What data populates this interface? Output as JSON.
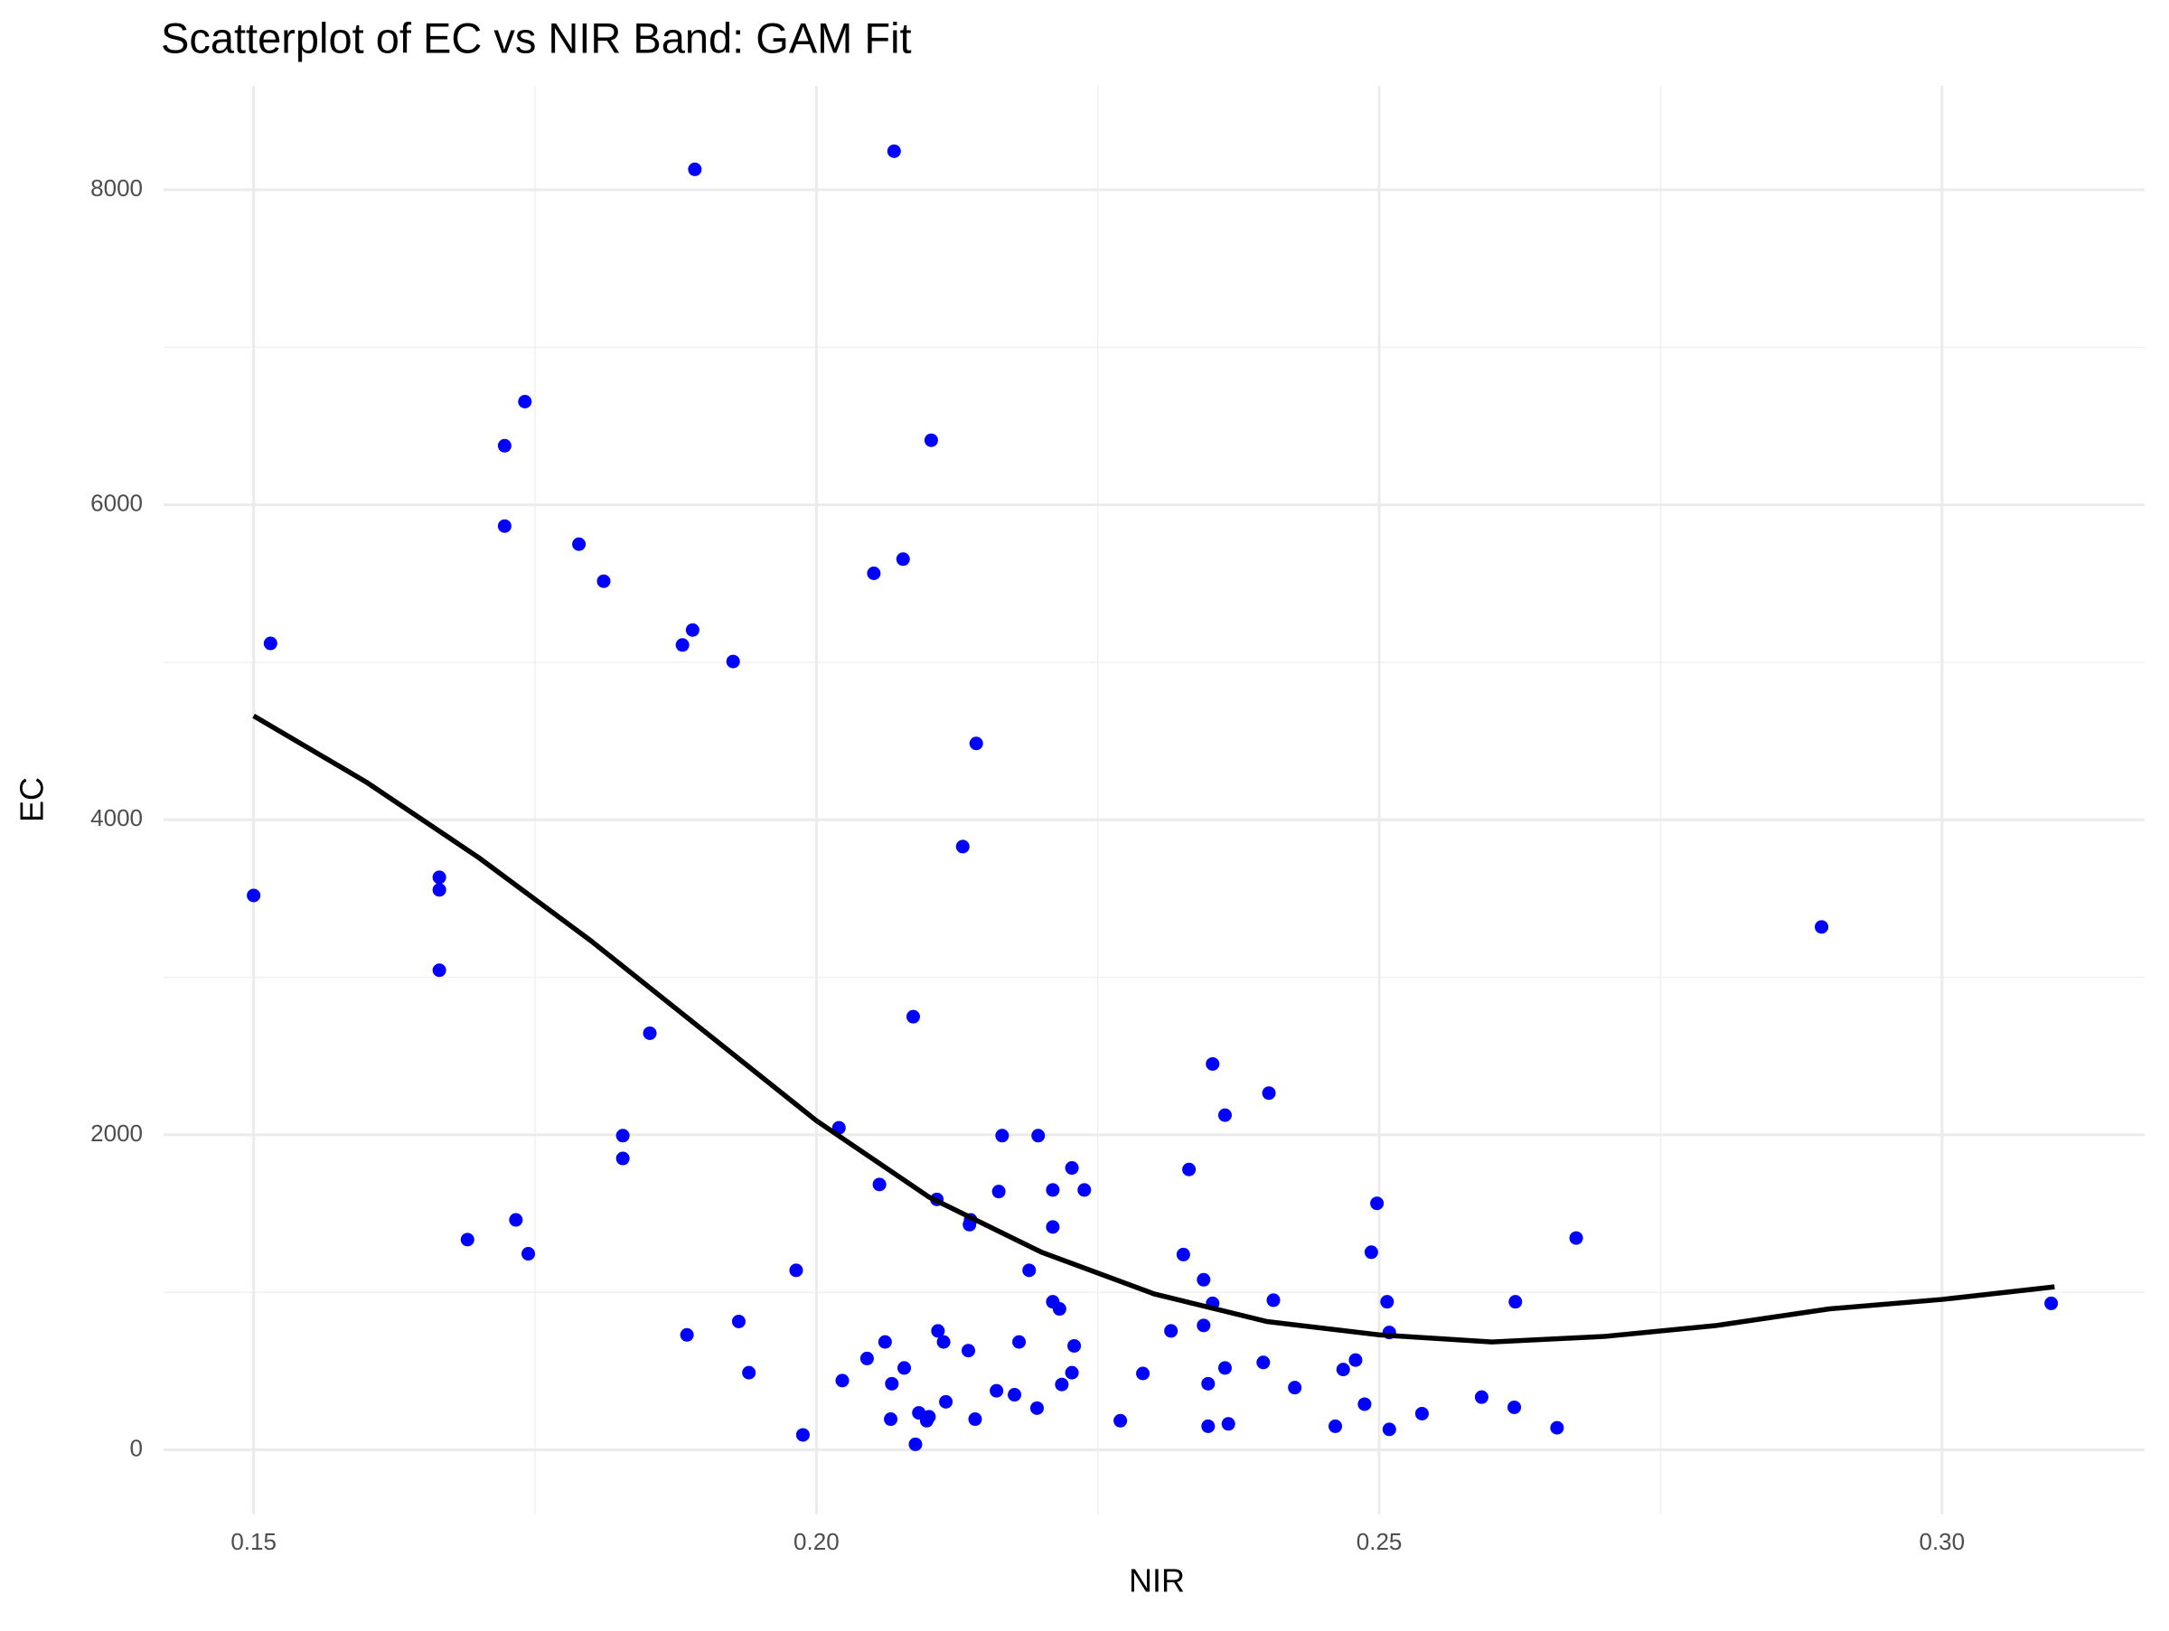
{
  "chart_data": {
    "type": "scatter",
    "title": "Scatterplot of EC vs NIR Band: GAM Fit",
    "x_label": "NIR",
    "y_label": "EC",
    "xlim": [
      0.142,
      0.318
    ],
    "ylim": [
      -410,
      8660
    ],
    "xticks": [
      {
        "value": 0.15,
        "label": "0.15"
      },
      {
        "value": 0.2,
        "label": "0.20"
      },
      {
        "value": 0.25,
        "label": "0.25"
      },
      {
        "value": 0.3,
        "label": "0.30"
      }
    ],
    "yticks": [
      0,
      2000,
      4000,
      6000,
      8000
    ],
    "minor_xticks": [
      0.175,
      0.225,
      0.275
    ],
    "minor_yticks": [
      1000,
      3000,
      5000,
      7000
    ],
    "grid": true,
    "series": [
      {
        "type": "scatter",
        "color": "#0000ff",
        "x": [
          0.15,
          0.1515,
          0.1665,
          0.1665,
          0.1665,
          0.169,
          0.1723,
          0.1723,
          0.1733,
          0.1741,
          0.1744,
          0.1789,
          0.1811,
          0.1828,
          0.1828,
          0.1852,
          0.1881,
          0.1885,
          0.189,
          0.1892,
          0.1926,
          0.1931,
          0.194,
          0.1982,
          0.1988,
          0.202,
          0.2023,
          0.2045,
          0.2051,
          0.2056,
          0.2061,
          0.2066,
          0.2067,
          0.2069,
          0.2077,
          0.2078,
          0.2086,
          0.2088,
          0.2091,
          0.2098,
          0.21,
          0.2102,
          0.2107,
          0.2108,
          0.2113,
          0.2115,
          0.213,
          0.2135,
          0.2136,
          0.2137,
          0.2141,
          0.2142,
          0.216,
          0.2162,
          0.2165,
          0.2176,
          0.218,
          0.2189,
          0.2196,
          0.2197,
          0.221,
          0.221,
          0.221,
          0.2216,
          0.2218,
          0.2227,
          0.2227,
          0.2229,
          0.2238,
          0.227,
          0.229,
          0.2315,
          0.2326,
          0.2331,
          0.2344,
          0.2344,
          0.2348,
          0.2348,
          0.2352,
          0.2352,
          0.2363,
          0.2363,
          0.2366,
          0.2402,
          0.2397,
          0.2406,
          0.2425,
          0.2461,
          0.2468,
          0.2479,
          0.2487,
          0.2493,
          0.2498,
          0.2507,
          0.2509,
          0.2509,
          0.2538,
          0.2591,
          0.262,
          0.2621,
          0.2658,
          0.2675,
          0.2893,
          0.3097
        ],
        "y": [
          3520,
          5120,
          3635,
          3555,
          3045,
          1335,
          6375,
          5865,
          1460,
          6655,
          1245,
          5750,
          5515,
          1995,
          1850,
          2645,
          5110,
          730,
          5205,
          8130,
          5005,
          815,
          490,
          1140,
          95,
          2045,
          440,
          580,
          5565,
          1685,
          685,
          195,
          420,
          8245,
          5655,
          520,
          2750,
          35,
          235,
          185,
          210,
          6410,
          1590,
          755,
          685,
          305,
          3830,
          630,
          1430,
          1460,
          195,
          4485,
          375,
          1640,
          1995,
          350,
          685,
          1140,
          265,
          1995,
          1650,
          1415,
          940,
          895,
          415,
          1790,
          490,
          660,
          1650,
          185,
          485,
          755,
          1240,
          1780,
          1080,
          790,
          420,
          150,
          2450,
          930,
          2125,
          520,
          165,
          2265,
          555,
          950,
          395,
          150,
          510,
          570,
          290,
          1255,
          1565,
          940,
          745,
          130,
          230,
          335,
          270,
          940,
          140,
          1345,
          3320,
          930
        ]
      },
      {
        "type": "line",
        "color": "#000000",
        "x": [
          0.15,
          0.16,
          0.17,
          0.18,
          0.19,
          0.2,
          0.21,
          0.22,
          0.23,
          0.24,
          0.25,
          0.26,
          0.27,
          0.28,
          0.29,
          0.3,
          0.31
        ],
        "y": [
          4660,
          4240,
          3760,
          3230,
          2660,
          2090,
          1605,
          1255,
          990,
          815,
          730,
          685,
          720,
          790,
          895,
          955,
          1035
        ]
      }
    ]
  }
}
